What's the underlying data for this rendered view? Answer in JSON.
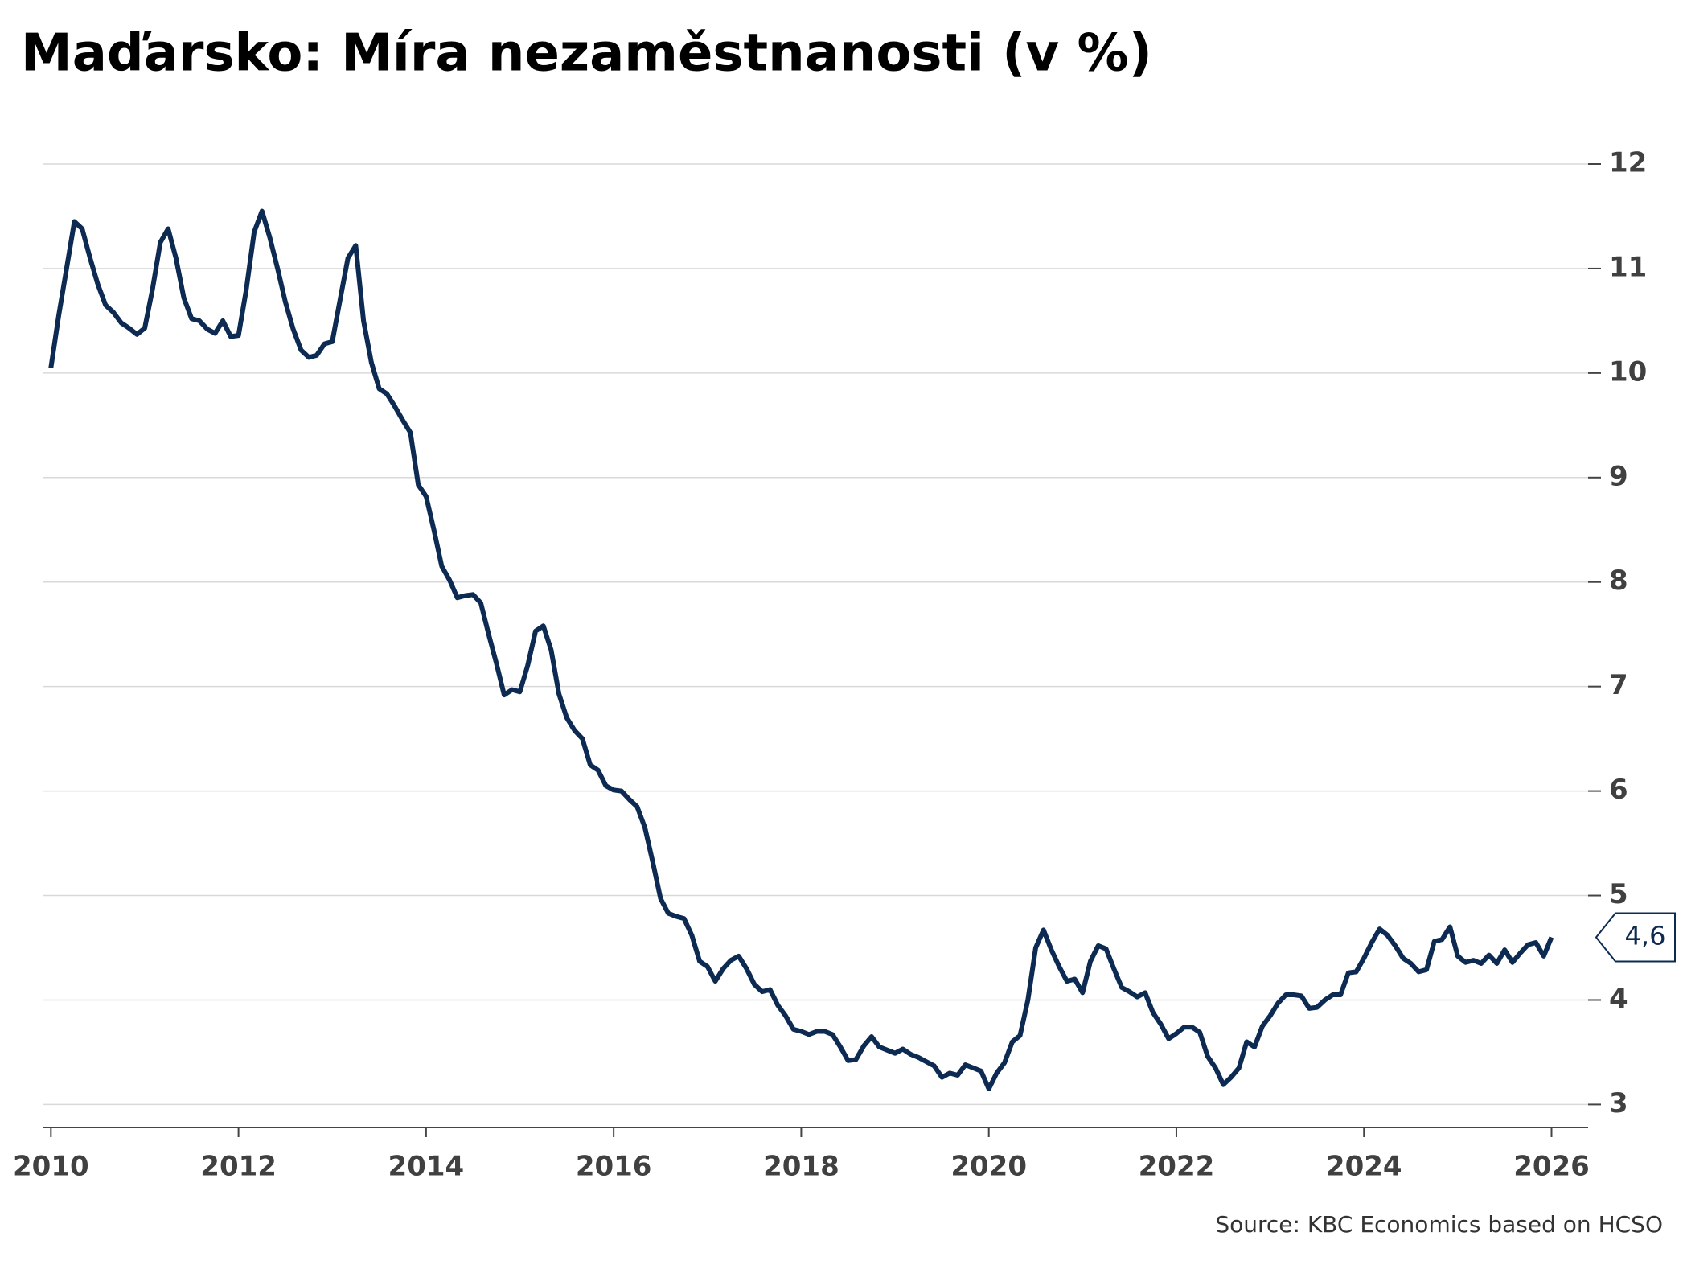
{
  "chart_data": {
    "type": "line",
    "title": "Maďarsko: Míra nezaměstnanosti (v %)",
    "source": "Source: KBC Economics based on HCSO",
    "end_label": "4,6",
    "x": [
      2010,
      2010.083,
      2010.167,
      2010.25,
      2010.333,
      2010.417,
      2010.5,
      2010.583,
      2010.667,
      2010.75,
      2010.833,
      2010.917,
      2011,
      2011.083,
      2011.167,
      2011.25,
      2011.333,
      2011.417,
      2011.5,
      2011.583,
      2011.667,
      2011.75,
      2011.833,
      2011.917,
      2012,
      2012.083,
      2012.167,
      2012.25,
      2012.333,
      2012.417,
      2012.5,
      2012.583,
      2012.667,
      2012.75,
      2012.833,
      2012.917,
      2013,
      2013.083,
      2013.167,
      2013.25,
      2013.333,
      2013.417,
      2013.5,
      2013.583,
      2013.667,
      2013.75,
      2013.833,
      2013.917,
      2014,
      2014.083,
      2014.167,
      2014.25,
      2014.333,
      2014.417,
      2014.5,
      2014.583,
      2014.667,
      2014.75,
      2014.833,
      2014.917,
      2015,
      2015.083,
      2015.167,
      2015.25,
      2015.333,
      2015.417,
      2015.5,
      2015.583,
      2015.667,
      2015.75,
      2015.833,
      2015.917,
      2016,
      2016.083,
      2016.167,
      2016.25,
      2016.333,
      2016.417,
      2016.5,
      2016.583,
      2016.667,
      2016.75,
      2016.833,
      2016.917,
      2017,
      2017.083,
      2017.167,
      2017.25,
      2017.333,
      2017.417,
      2017.5,
      2017.583,
      2017.667,
      2017.75,
      2017.833,
      2017.917,
      2018,
      2018.083,
      2018.167,
      2018.25,
      2018.333,
      2018.417,
      2018.5,
      2018.583,
      2018.667,
      2018.75,
      2018.833,
      2018.917,
      2019,
      2019.083,
      2019.167,
      2019.25,
      2019.333,
      2019.417,
      2019.5,
      2019.583,
      2019.667,
      2019.75,
      2019.833,
      2019.917,
      2020,
      2020.083,
      2020.167,
      2020.25,
      2020.333,
      2020.417,
      2020.5,
      2020.583,
      2020.667,
      2020.75,
      2020.833,
      2020.917,
      2021,
      2021.083,
      2021.167,
      2021.25,
      2021.333,
      2021.417,
      2021.5,
      2021.583,
      2021.667,
      2021.75,
      2021.833,
      2021.917,
      2022,
      2022.083,
      2022.167,
      2022.25,
      2022.333,
      2022.417,
      2022.5,
      2022.583,
      2022.667,
      2022.75,
      2022.833,
      2022.917,
      2023,
      2023.083,
      2023.167,
      2023.25,
      2023.333,
      2023.417,
      2023.5,
      2023.583,
      2023.667,
      2023.75,
      2023.833,
      2023.917,
      2024,
      2024.083,
      2024.167,
      2024.25,
      2024.333,
      2024.417,
      2024.5,
      2024.583,
      2024.667,
      2024.75,
      2024.833,
      2024.917,
      2025,
      2025.083,
      2025.167,
      2025.25,
      2025.333,
      2025.417,
      2025.5,
      2025.583,
      2025.667,
      2025.75,
      2025.833,
      2025.917,
      2026
    ],
    "series": [
      {
        "name": "Míra nezaměstnanosti",
        "color": "#0d2a52",
        "values": [
          10.05,
          10.55,
          11.0,
          11.45,
          11.38,
          11.1,
          10.85,
          10.65,
          10.58,
          10.48,
          10.43,
          10.37,
          10.43,
          10.8,
          11.25,
          11.38,
          11.1,
          10.72,
          10.52,
          10.5,
          10.42,
          10.38,
          10.5,
          10.35,
          10.36,
          10.8,
          11.35,
          11.55,
          11.3,
          11.0,
          10.68,
          10.42,
          10.22,
          10.15,
          10.17,
          10.28,
          10.3,
          10.7,
          11.1,
          11.22,
          10.5,
          10.1,
          9.85,
          9.8,
          9.68,
          9.55,
          9.43,
          8.93,
          8.82,
          8.5,
          8.15,
          8.02,
          7.85,
          7.87,
          7.88,
          7.8,
          7.5,
          7.22,
          6.92,
          6.97,
          6.95,
          7.2,
          7.53,
          7.58,
          7.35,
          6.93,
          6.7,
          6.58,
          6.5,
          6.25,
          6.2,
          6.05,
          6.01,
          6.0,
          5.92,
          5.85,
          5.65,
          5.32,
          4.97,
          4.83,
          4.8,
          4.78,
          4.62,
          4.37,
          4.32,
          4.18,
          4.3,
          4.38,
          4.42,
          4.3,
          4.15,
          4.08,
          4.1,
          3.95,
          3.85,
          3.72,
          3.7,
          3.67,
          3.7,
          3.7,
          3.67,
          3.55,
          3.42,
          3.43,
          3.56,
          3.65,
          3.55,
          3.52,
          3.49,
          3.53,
          3.48,
          3.45,
          3.41,
          3.37,
          3.26,
          3.3,
          3.28,
          3.38,
          3.35,
          3.32,
          3.15,
          3.3,
          3.4,
          3.6,
          3.66,
          4.0,
          4.5,
          4.67,
          4.48,
          4.32,
          4.18,
          4.2,
          4.07,
          4.37,
          4.52,
          4.49,
          4.3,
          4.12,
          4.08,
          4.03,
          4.07,
          3.88,
          3.77,
          3.63,
          3.68,
          3.74,
          3.74,
          3.69,
          3.46,
          3.35,
          3.19,
          3.26,
          3.35,
          3.6,
          3.55,
          3.75,
          3.85,
          3.97,
          4.05,
          4.05,
          4.04,
          3.92,
          3.93,
          4.0,
          4.05,
          4.05,
          4.26,
          4.27,
          4.4,
          4.55,
          4.68,
          4.62,
          4.52,
          4.4,
          4.35,
          4.27,
          4.29,
          4.56,
          4.58,
          4.7,
          4.42,
          4.36,
          4.38,
          4.35,
          4.43,
          4.35,
          4.48,
          4.36,
          4.45,
          4.53,
          4.55,
          4.42,
          4.6
        ]
      }
    ],
    "xlim": [
      2009.92,
      2026.39
    ],
    "xticks": [
      2010,
      2012,
      2014,
      2016,
      2018,
      2020,
      2022,
      2024,
      2026
    ],
    "ylim": [
      2.78,
      12.2
    ],
    "yticks": [
      3,
      4,
      5,
      6,
      7,
      8,
      9,
      10,
      11,
      12
    ],
    "grid": true
  }
}
